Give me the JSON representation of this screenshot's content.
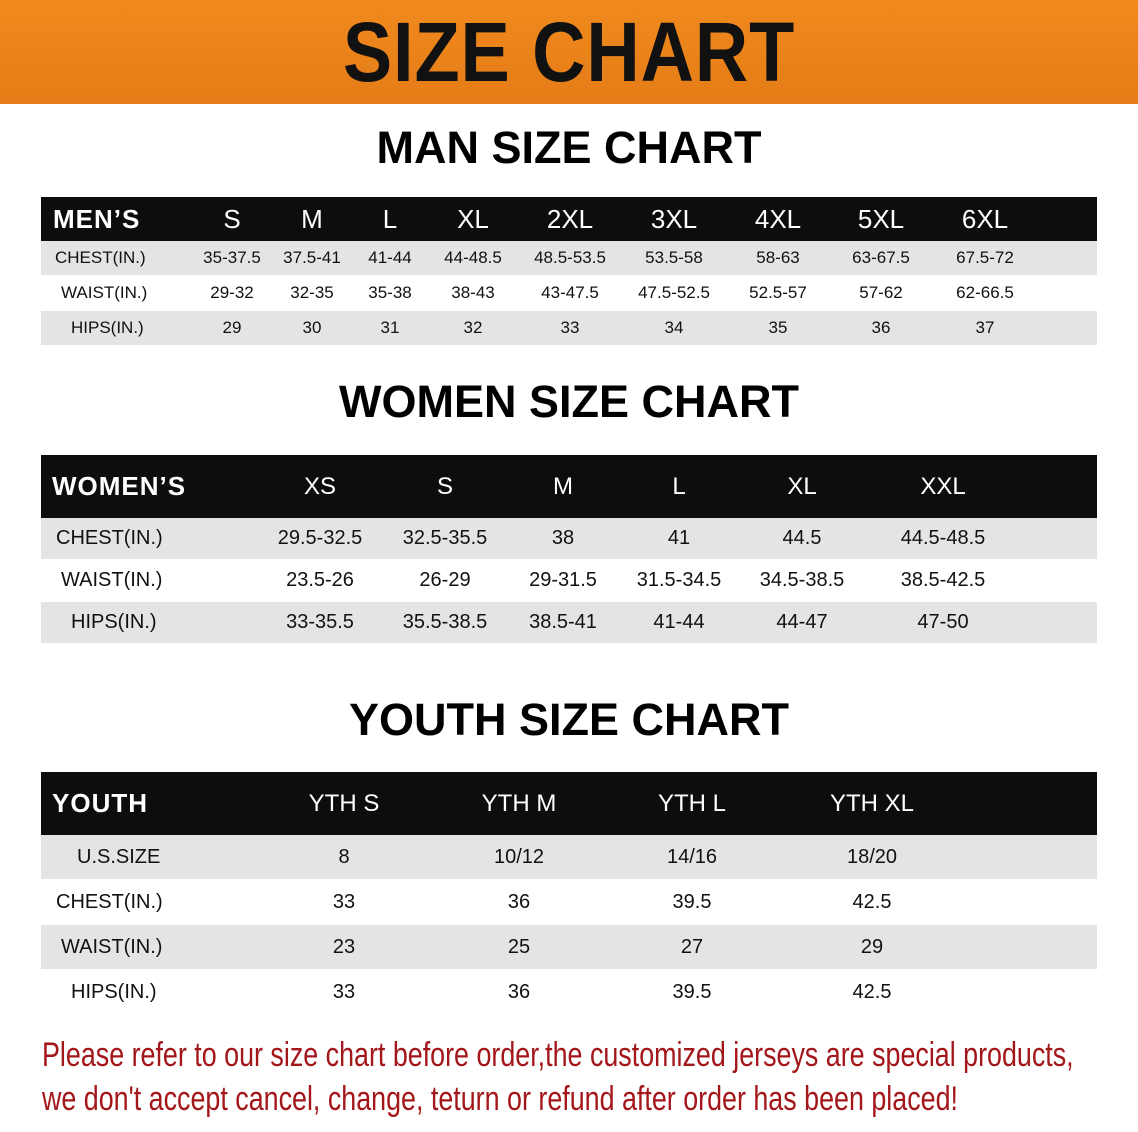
{
  "banner": {
    "title": "SIZE CHART",
    "color": "#e8821b"
  },
  "men": {
    "title": "MAN SIZE CHART",
    "header": "MEN’S",
    "sizes": [
      "S",
      "M",
      "L",
      "XL",
      "2XL",
      "3XL",
      "4XL",
      "5XL",
      "6XL"
    ],
    "rows": [
      {
        "label": "CHEST(IN.)",
        "values": [
          "35-37.5",
          "37.5-41",
          "41-44",
          "44-48.5",
          "48.5-53.5",
          "53.5-58",
          "58-63",
          "63-67.5",
          "67.5-72"
        ]
      },
      {
        "label": "WAIST(IN.)",
        "values": [
          "29-32",
          "32-35",
          "35-38",
          "38-43",
          "43-47.5",
          "47.5-52.5",
          "52.5-57",
          "57-62",
          "62-66.5"
        ]
      },
      {
        "label": "HIPS(IN.)",
        "values": [
          "29",
          "30",
          "31",
          "32",
          "33",
          "34",
          "35",
          "36",
          "37"
        ]
      }
    ]
  },
  "women": {
    "title": "WOMEN SIZE CHART",
    "header": "WOMEN’S",
    "sizes": [
      "XS",
      "S",
      "M",
      "L",
      "XL",
      "XXL"
    ],
    "rows": [
      {
        "label": "CHEST(IN.)",
        "values": [
          "29.5-32.5",
          "32.5-35.5",
          "38",
          "41",
          "44.5",
          "44.5-48.5"
        ]
      },
      {
        "label": "WAIST(IN.)",
        "values": [
          "23.5-26",
          "26-29",
          "29-31.5",
          "31.5-34.5",
          "34.5-38.5",
          "38.5-42.5"
        ]
      },
      {
        "label": "HIPS(IN.)",
        "values": [
          "33-35.5",
          "35.5-38.5",
          "38.5-41",
          "41-44",
          "44-47",
          "47-50"
        ]
      }
    ]
  },
  "youth": {
    "title": "YOUTH SIZE CHART",
    "header": "YOUTH",
    "sizes": [
      "YTH S",
      "YTH M",
      "YTH L",
      "YTH XL"
    ],
    "rows": [
      {
        "label": "U.S.SIZE",
        "values": [
          "8",
          "10/12",
          "14/16",
          "18/20"
        ]
      },
      {
        "label": "CHEST(IN.)",
        "values": [
          "33",
          "36",
          "39.5",
          "42.5"
        ]
      },
      {
        "label": "WAIST(IN.)",
        "values": [
          "23",
          "25",
          "27",
          "29"
        ]
      },
      {
        "label": "HIPS(IN.)",
        "values": [
          "33",
          "36",
          "39.5",
          "42.5"
        ]
      }
    ]
  },
  "notice": {
    "line1": "Please refer to our size chart before order,the customized jerseys are special products,",
    "line2": "we don't accept cancel, change, teturn or refund after order has been placed!",
    "color": "#a3161a"
  }
}
